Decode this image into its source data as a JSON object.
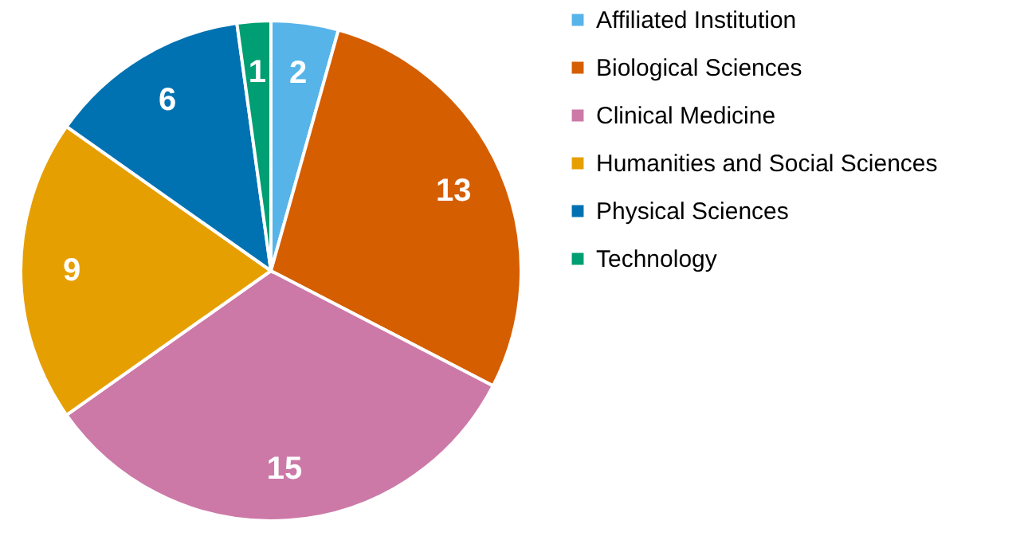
{
  "chart_data": {
    "type": "pie",
    "categories": [
      "Affiliated Institution",
      "Biological Sciences",
      "Clinical Medicine",
      "Humanities and Social Sciences",
      "Physical Sciences",
      "Technology"
    ],
    "values": [
      2,
      13,
      15,
      9,
      6,
      1
    ],
    "colors": [
      "#56b4e9",
      "#d55e00",
      "#cc79a7",
      "#e69f00",
      "#0072b2",
      "#009e73"
    ],
    "data_labels": true,
    "legend": "right"
  }
}
